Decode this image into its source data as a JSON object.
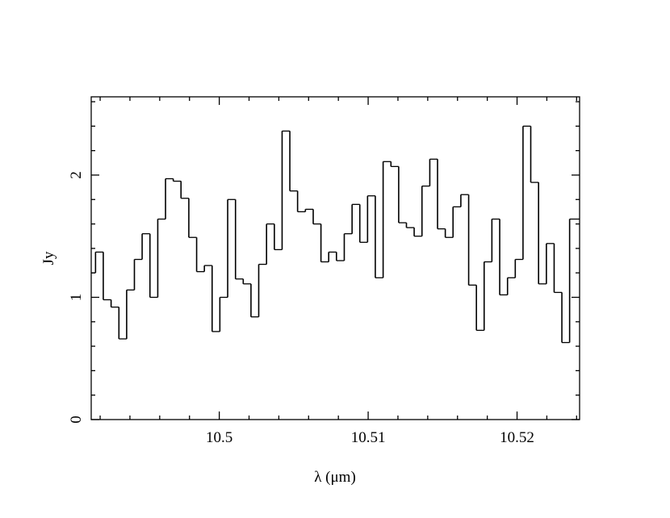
{
  "chart_data": {
    "type": "step",
    "xlabel": "λ (μm)",
    "ylabel": "Jy",
    "xlim": [
      10.4914,
      10.5242
    ],
    "ylim": [
      0,
      2.64
    ],
    "xticks": [
      10.5,
      10.51,
      10.52
    ],
    "yticks": [
      0,
      1,
      2
    ],
    "xminor_ticks": [
      10.492,
      10.494,
      10.496,
      10.498,
      10.502,
      10.504,
      10.506,
      10.508,
      10.512,
      10.514,
      10.516,
      10.518,
      10.522,
      10.524
    ],
    "yminor_ticks": [
      0.2,
      0.4,
      0.6,
      0.8,
      1.2,
      1.4,
      1.6,
      1.8,
      2.2,
      2.4,
      2.6
    ],
    "color": "#000000",
    "x": [
      10.49143,
      10.49195,
      10.49247,
      10.493,
      10.49352,
      10.49404,
      10.49456,
      10.49508,
      10.49561,
      10.49613,
      10.49665,
      10.49717,
      10.49769,
      10.49822,
      10.49874,
      10.49926,
      10.49978,
      10.5003,
      10.50083,
      10.50135,
      10.50187,
      10.50239,
      10.50291,
      10.50344,
      10.50396,
      10.50448,
      10.505,
      10.50552,
      10.50605,
      10.50657,
      10.50709,
      10.50761,
      10.50813,
      10.50866,
      10.50918,
      10.5097,
      10.51022,
      10.51074,
      10.51127,
      10.51179,
      10.51231,
      10.51283,
      10.51335,
      10.51388,
      10.5144,
      10.51492,
      10.51544,
      10.51596,
      10.51649,
      10.51701,
      10.51753,
      10.51805,
      10.51857,
      10.5191,
      10.51962,
      10.52014,
      10.52066,
      10.52118,
      10.52171,
      10.52223,
      10.52275,
      10.52327,
      10.52379
    ],
    "values": [
      1.2,
      1.37,
      0.98,
      0.92,
      0.66,
      1.06,
      1.31,
      1.52,
      1.0,
      1.64,
      1.97,
      1.95,
      1.81,
      1.49,
      1.21,
      1.26,
      0.72,
      1.0,
      1.8,
      1.15,
      1.11,
      0.84,
      1.27,
      1.6,
      1.39,
      2.36,
      1.87,
      1.7,
      1.72,
      1.6,
      1.29,
      1.37,
      1.3,
      1.52,
      1.76,
      1.45,
      1.83,
      1.16,
      2.11,
      2.07,
      1.61,
      1.57,
      1.5,
      1.91,
      2.13,
      1.56,
      1.49,
      1.74,
      1.84,
      1.1,
      0.73,
      1.29,
      1.64,
      1.02,
      1.16,
      1.31,
      2.4,
      1.94,
      1.11,
      1.44,
      1.04,
      0.63,
      1.64
    ]
  }
}
